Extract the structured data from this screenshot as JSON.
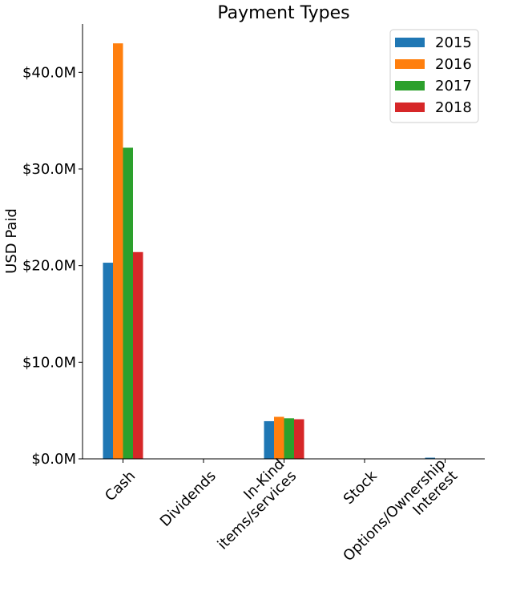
{
  "chart_data": {
    "type": "bar",
    "title": "Payment Types",
    "xlabel": "",
    "ylabel": "USD Paid",
    "categories": [
      "Cash",
      "Dividends",
      "In-Kind items/services",
      "Stock",
      "Options/Ownership Interest"
    ],
    "category_lines": [
      [
        "Cash"
      ],
      [
        "Dividends"
      ],
      [
        "In-Kind",
        "items/services"
      ],
      [
        "Stock"
      ],
      [
        "Options/Ownership",
        "Interest"
      ]
    ],
    "series": [
      {
        "name": "2015",
        "color": "#1f77b4",
        "values": [
          20.3,
          0,
          3.9,
          0,
          0.12
        ]
      },
      {
        "name": "2016",
        "color": "#ff7f0e",
        "values": [
          43.0,
          0,
          4.35,
          0,
          0
        ]
      },
      {
        "name": "2017",
        "color": "#2ca02c",
        "values": [
          32.2,
          0,
          4.2,
          0,
          0
        ]
      },
      {
        "name": "2018",
        "color": "#d62728",
        "values": [
          21.4,
          0,
          4.1,
          0,
          0
        ]
      }
    ],
    "ylim": [
      0,
      45
    ],
    "yticks": [
      0,
      10,
      20,
      30,
      40
    ],
    "ytick_labels": [
      "$0.0M",
      "$10.0M",
      "$20.0M",
      "$30.0M",
      "$40.0M"
    ],
    "grid": false,
    "legend_position": "top-right"
  }
}
